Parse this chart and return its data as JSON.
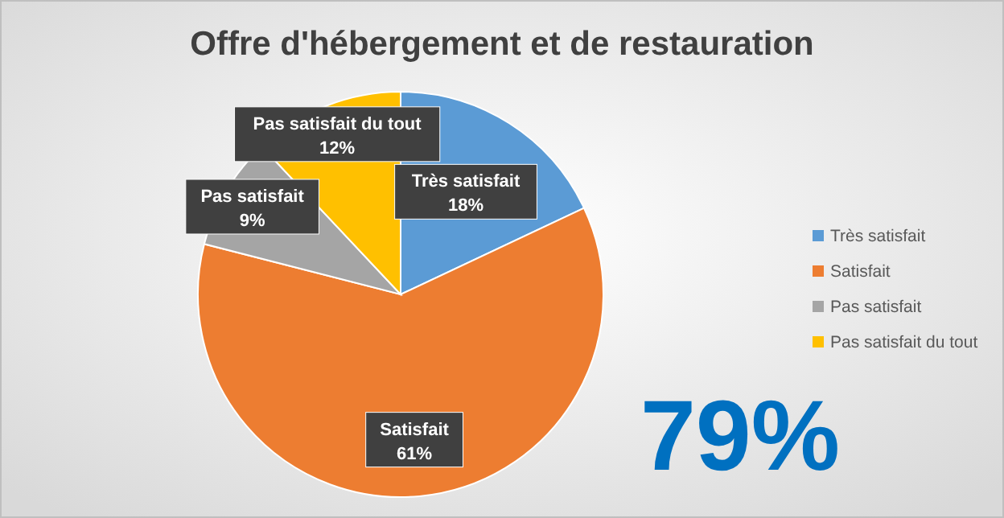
{
  "chart_data": {
    "type": "pie",
    "title": "Offre d'hébergement et de restauration",
    "categories": [
      "Très satisfait",
      "Satisfait",
      "Pas satisfait",
      "Pas satisfait du tout"
    ],
    "values": [
      18,
      61,
      9,
      12
    ],
    "colors": [
      "#5b9bd5",
      "#ed7d31",
      "#a5a5a5",
      "#ffc000"
    ],
    "value_labels": [
      "18%",
      "61%",
      "9%",
      "12%"
    ],
    "legend": "right",
    "annotations": [
      "79%"
    ]
  }
}
